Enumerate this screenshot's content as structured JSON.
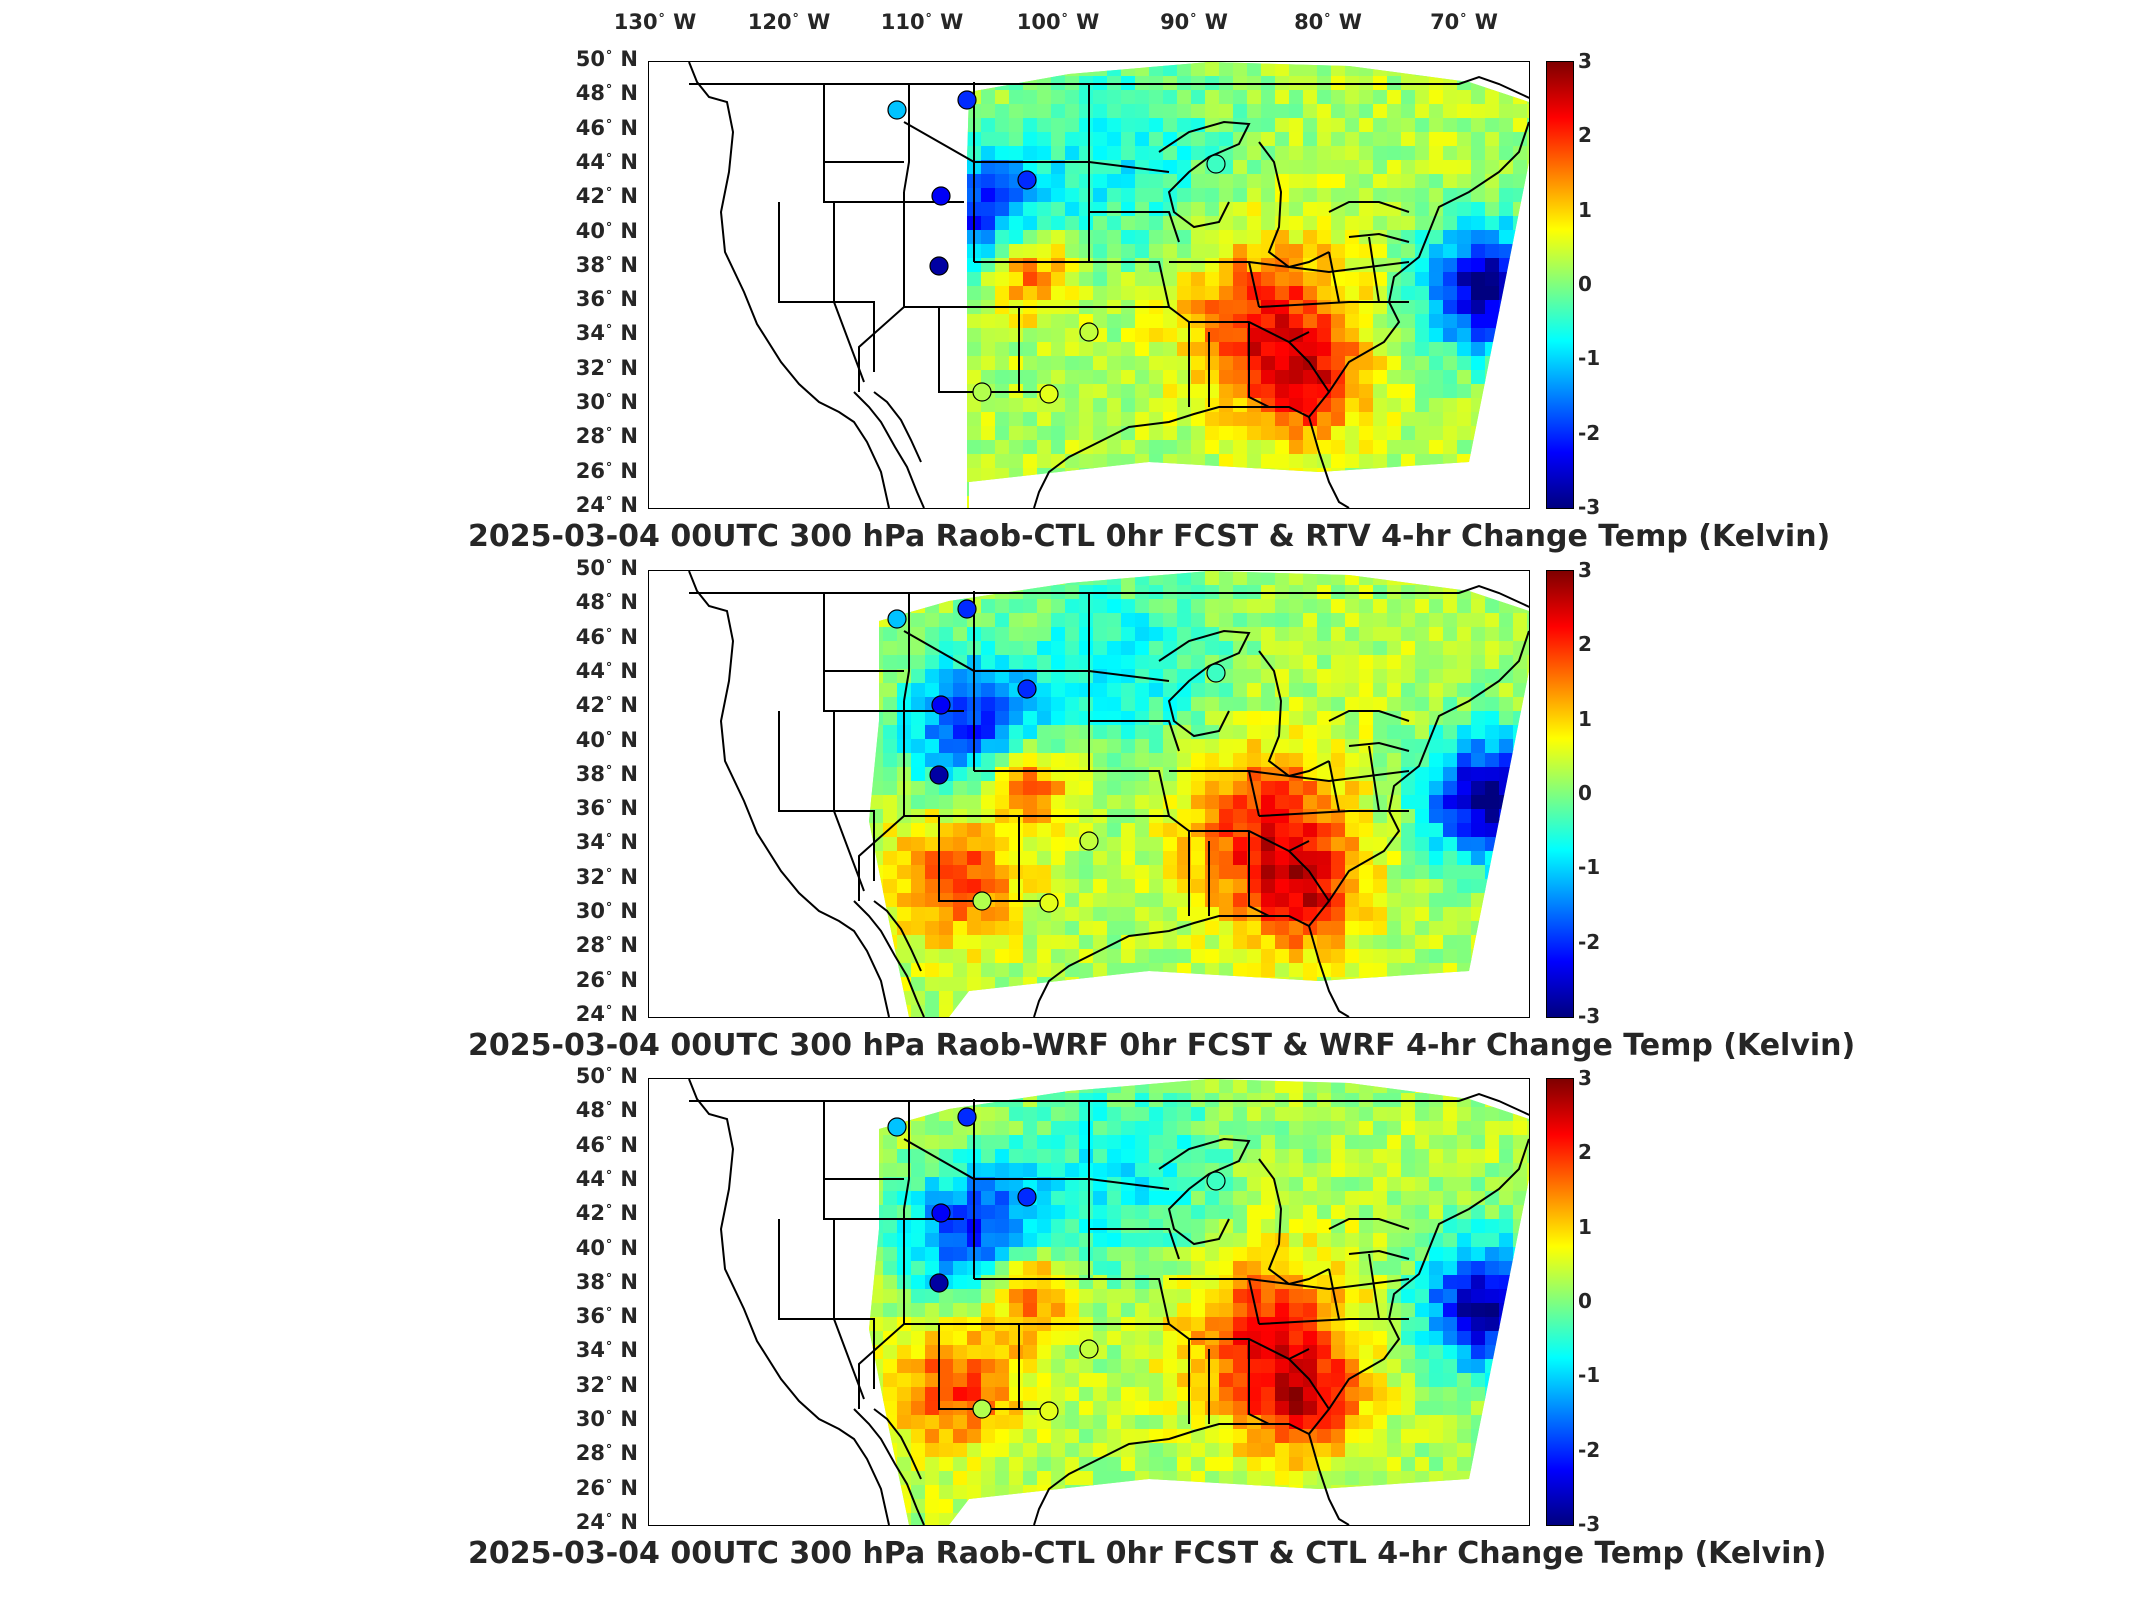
{
  "lon_labels": [
    "130",
    "120",
    "110",
    "100",
    "90",
    "80",
    "70"
  ],
  "lon_suffix": "W",
  "lat_labels": [
    "50",
    "48",
    "46",
    "44",
    "42",
    "40",
    "38",
    "36",
    "34",
    "32",
    "30",
    "28",
    "26",
    "24"
  ],
  "lat_suffix": "N",
  "colorbar": {
    "ticks": [
      "3",
      "2",
      "1",
      "0",
      "-1",
      "-2",
      "-3"
    ],
    "range": [
      -3,
      3
    ],
    "colors": [
      "#00007f",
      "#0000ff",
      "#007fff",
      "#00ffff",
      "#7fff7f",
      "#ffff00",
      "#ff7f00",
      "#ff0000",
      "#7f0000"
    ]
  },
  "panels": [
    {
      "title": "2025-03-04 00UTC 300 hPa Raob-CTL 0hr FCST & RTV 4-hr Change Temp (Kelvin)",
      "field_extent": "partial"
    },
    {
      "title": "2025-03-04 00UTC 300 hPa Raob-WRF 0hr FCST & WRF 4-hr Change Temp (Kelvin)",
      "field_extent": "full"
    },
    {
      "title": "2025-03-04 00UTC 300 hPa Raob-CTL 0hr FCST & CTL 4-hr Change Temp (Kelvin)",
      "field_extent": "full"
    }
  ],
  "raob_stations": [
    {
      "value": -1.1
    },
    {
      "value": -2.0
    },
    {
      "value": -2.3
    },
    {
      "value": -2.8
    },
    {
      "value": -2.0
    },
    {
      "value": -0.4
    },
    {
      "value": 0.4
    },
    {
      "value": 0.3
    },
    {
      "value": 0.6
    }
  ]
}
